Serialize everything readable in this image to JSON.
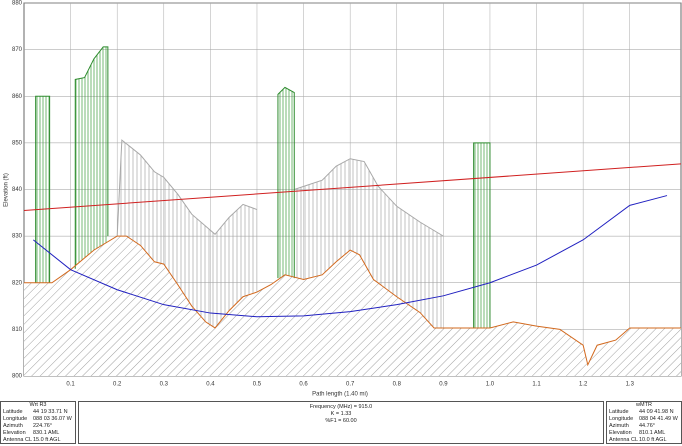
{
  "chart_data": {
    "type": "line",
    "x_label": "Path length (1.40 mi)",
    "y_label": "Elevation (ft)",
    "xlim": [
      0,
      1.41
    ],
    "ylim": [
      800,
      880
    ],
    "xticks": [
      0.1,
      0.2,
      0.3,
      0.4,
      0.5,
      0.6,
      0.7,
      0.8,
      0.9,
      {
        "value": 1,
        "label": "1.0"
      },
      1.1,
      1.2,
      1.3
    ],
    "yticks": [
      800,
      810,
      820,
      830,
      840,
      850,
      860,
      870,
      880
    ],
    "grid": true,
    "series": [
      {
        "color": "#a8a8a8",
        "x": [
          0.2,
          0.21,
          0.25,
          0.28,
          0.3,
          0.33,
          0.36,
          0.41,
          0.44,
          0.47,
          0.5,
          null,
          0.58,
          0.64,
          0.67,
          0.7,
          0.73,
          0.76,
          0.8,
          0.85,
          0.9
        ],
        "values": [
          830,
          850.6,
          847.4,
          843.8,
          842.6,
          839,
          834.7,
          830.4,
          834,
          836.8,
          835.7,
          null,
          840,
          842,
          845,
          846.6,
          846,
          840.7,
          836.4,
          833,
          830
        ]
      },
      {
        "color": "#2e8b2e",
        "x": [
          0.025,
          0.025,
          0.055,
          0.055,
          null,
          0.11,
          0.11,
          0.13,
          0.15,
          0.17,
          0.18,
          0.18,
          null,
          0.545,
          0.545,
          0.56,
          0.58,
          0.58,
          null,
          0.965,
          0.965,
          1,
          1
        ],
        "values": [
          820,
          860,
          860,
          820,
          null,
          823,
          863.6,
          864,
          868,
          870.6,
          870.6,
          830,
          null,
          821,
          860.4,
          861.9,
          860.8,
          821,
          null,
          810.3,
          850,
          850,
          810.3
        ]
      },
      {
        "color": "#d2691e",
        "x": [
          0,
          0.03,
          0.06,
          0.1,
          0.15,
          0.2,
          0.22,
          0.25,
          0.28,
          0.3,
          0.33,
          0.36,
          0.39,
          0.41,
          0.44,
          0.47,
          0.5,
          0.53,
          0.56,
          0.6,
          0.64,
          0.67,
          0.7,
          0.72,
          0.75,
          0.8,
          0.85,
          0.88,
          0.95,
          1,
          1.05,
          1.1,
          1.15,
          1.2,
          1.21,
          1.23,
          1.27,
          1.3,
          1.41
        ],
        "values": [
          820,
          820,
          820,
          822.8,
          827,
          830,
          830,
          828,
          824.5,
          824,
          819.6,
          815,
          811.6,
          810.3,
          814,
          817,
          818,
          819.6,
          821.7,
          820.7,
          821.7,
          824.5,
          827,
          826,
          820.7,
          817,
          813.6,
          810.3,
          810.3,
          810.3,
          811.6,
          810.7,
          810,
          806.6,
          802.4,
          806.6,
          807.7,
          810.3,
          810.3
        ]
      },
      {
        "color": "#2020c0",
        "x": [
          0.02,
          0.1,
          0.2,
          0.3,
          0.4,
          0.5,
          0.6,
          0.7,
          0.8,
          0.9,
          1,
          1.1,
          1.2,
          1.3,
          1.38
        ],
        "values": [
          829.2,
          822.8,
          818.5,
          815.3,
          813.5,
          812.7,
          812.9,
          813.8,
          815.3,
          817.2,
          820,
          823.8,
          829.2,
          836.6,
          838.7
        ]
      },
      {
        "color": "#d02020",
        "x": [
          0,
          1.41
        ],
        "values": [
          835.5,
          845.5
        ]
      }
    ]
  },
  "left_panel": {
    "title": "Wrt R3",
    "rows": [
      [
        "Latitude",
        "44 19 33.71 N"
      ],
      [
        "Longitude",
        "088 03 36.07 W"
      ],
      [
        "Azimuth",
        "224.76°"
      ],
      [
        "Elevation",
        "830.1 AML"
      ],
      [
        "Antenna CL",
        "15.0 ft AGL"
      ]
    ]
  },
  "center_panel": [
    "Frequency (MHz) = 915.0",
    "K = 1.33",
    "%F1 = 60.00"
  ],
  "right_panel": {
    "title": "wMTR",
    "rows": [
      [
        "Latitude",
        "44 09 41.98 N"
      ],
      [
        "Longitude",
        "088 04 41.49 W"
      ],
      [
        "Azimuth",
        "44.76°"
      ],
      [
        "Elevation",
        "810.1 AML"
      ],
      [
        "Antenna CL",
        "10.0 ft AGL"
      ]
    ]
  }
}
